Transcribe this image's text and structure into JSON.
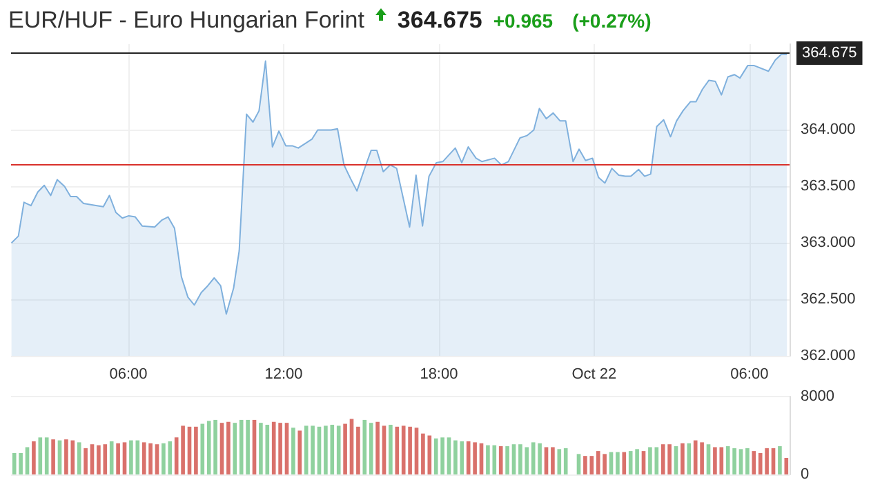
{
  "chart_data": [
    {
      "type": "area",
      "title": "EUR/HUF - Euro Hungarian Forint",
      "annotations": [
        "364.675",
        "+0.965",
        "(+0.27%)"
      ],
      "x": [
        "--10-21T01:29",
        "--10-21T01:45",
        "--10-21T01:58",
        "--10-21T02:14",
        "--10-21T02:30",
        "--10-21T02:45",
        "--10-21T03:00",
        "--10-21T03:15",
        "--10-21T03:32",
        "--10-21T03:46",
        "--10-21T04:00",
        "--10-21T04:16",
        "--10-21T04:47",
        "--10-21T05:02",
        "--10-21T05:16",
        "--10-21T05:31",
        "--10-21T05:46",
        "--10-21T06:01",
        "--10-21T06:16",
        "--10-21T06:32",
        "--10-21T07:01",
        "--10-21T07:17",
        "--10-21T07:32",
        "--10-21T07:47",
        "--10-21T08:03",
        "--10-21T08:18",
        "--10-21T08:33",
        "--10-21T08:49",
        "--10-21T09:04",
        "--10-21T09:19",
        "--10-21T09:34",
        "--10-21T09:47",
        "--10-21T10:04",
        "--10-21T10:17",
        "--10-21T10:34",
        "--10-21T10:49",
        "--10-21T11:03",
        "--10-21T11:18",
        "--10-21T11:34",
        "--10-21T11:49",
        "--10-21T12:05",
        "--10-21T12:20",
        "--10-21T12:34",
        "--10-21T12:50",
        "--10-21T13:06",
        "--10-21T13:19",
        "--10-21T13:50",
        "--10-21T14:05",
        "--10-21T14:20",
        "--10-21T14:35",
        "--10-21T14:50",
        "--10-21T15:07",
        "--10-21T15:23",
        "--10-21T15:36",
        "--10-21T15:51",
        "--10-21T16:07",
        "--10-21T16:22",
        "--10-21T16:52",
        "--10-21T17:07",
        "--10-21T17:22",
        "--10-21T17:37",
        "--10-21T17:54",
        "--10-21T18:09",
        "--10-21T18:38",
        "--10-21T18:53",
        "--10-21T19:08",
        "--10-21T19:26",
        "--10-21T19:40",
        "--10-21T20:09",
        "--10-21T20:25",
        "--10-21T20:41",
        "--10-21T21:08",
        "--10-21T21:24",
        "--10-21T21:40",
        "--10-21T21:53",
        "--10-21T22:09",
        "--10-21T22:25",
        "--10-21T22:41",
        "--10-21T22:54",
        "--10-21T23:11",
        "--10-21T23:25",
        "--10-21T23:40",
        "--10-21T23:56",
        "--10-22T00:10",
        "--10-22T00:25",
        "--10-22T00:41",
        "--10-22T00:57",
        "--10-22T01:12",
        "--10-22T01:25",
        "--10-22T01:43",
        "--10-22T01:57",
        "--10-22T02:11",
        "--10-22T02:25",
        "--10-22T02:41",
        "--10-22T02:57",
        "--10-22T03:11",
        "--10-22T03:26",
        "--10-22T03:43",
        "--10-22T03:56",
        "--10-22T04:11",
        "--10-22T04:26",
        "--10-22T04:41",
        "--10-22T04:55",
        "--10-22T05:10",
        "--10-22T05:25",
        "--10-22T05:38",
        "--10-22T05:56",
        "--10-22T06:11",
        "--10-22T06:44",
        "--10-22T07:00",
        "--10-22T07:14",
        "--10-22T07:27"
      ],
      "series": [
        {
          "color": "#7fb0dd",
          "values": [
            363.0,
            363.06,
            363.36,
            363.33,
            363.45,
            363.51,
            363.42,
            363.56,
            363.5,
            363.41,
            363.41,
            363.35,
            363.33,
            363.32,
            363.42,
            363.27,
            363.22,
            363.24,
            363.23,
            363.15,
            363.14,
            363.2,
            363.23,
            363.13,
            362.7,
            362.52,
            362.45,
            362.56,
            362.62,
            362.69,
            362.62,
            362.37,
            362.6,
            362.93,
            364.14,
            364.07,
            364.17,
            364.61,
            363.85,
            363.99,
            363.86,
            363.86,
            363.84,
            363.88,
            363.92,
            364.0,
            364.0,
            364.01,
            363.69,
            363.57,
            363.46,
            363.65,
            363.82,
            363.82,
            363.63,
            363.69,
            363.66,
            363.14,
            363.6,
            363.15,
            363.59,
            363.71,
            363.72,
            363.84,
            363.71,
            363.85,
            363.75,
            363.72,
            363.75,
            363.69,
            363.72,
            363.93,
            363.95,
            364.0,
            364.19,
            364.1,
            364.15,
            364.08,
            364.08,
            363.72,
            363.83,
            363.73,
            363.75,
            363.58,
            363.53,
            363.66,
            363.6,
            363.59,
            363.59,
            363.65,
            363.59,
            363.61,
            364.03,
            364.09,
            363.94,
            364.08,
            364.17,
            364.25,
            364.25,
            364.36,
            364.44,
            364.43,
            364.31,
            364.47,
            364.49,
            364.46,
            364.57,
            364.57,
            364.52,
            364.62,
            364.67,
            364.67
          ]
        }
      ],
      "xlim": [
        "--10-21T01:28",
        "--10-22T07:33"
      ],
      "xticks": [
        {
          "value": "--10-21T06:00",
          "label": "06:00"
        },
        {
          "value": "--10-21T12:00",
          "label": "12:00"
        },
        {
          "value": "--10-21T18:00",
          "label": "18:00"
        },
        {
          "value": "--10-22T00:00",
          "label": "Oct 22"
        },
        {
          "value": "--10-22T06:00",
          "label": "06:00"
        }
      ],
      "ylim": [
        362,
        364.76
      ],
      "yticks": [
        {
          "value": 362,
          "label": "362.000"
        },
        {
          "value": 362.5,
          "label": "362.500"
        },
        {
          "value": 363,
          "label": "363.000"
        },
        {
          "value": 363.5,
          "label": "363.500"
        },
        {
          "value": 364,
          "label": "364.000"
        }
      ],
      "ref_lines": [
        {
          "axis": "y",
          "value": 364.675,
          "label": "364.675",
          "color": "#222222"
        },
        {
          "axis": "y",
          "value": 363.7,
          "label": null,
          "color": "#d9302a"
        }
      ],
      "grid": true,
      "marker": "none",
      "line_style": "solid"
    },
    {
      "type": "bar",
      "categories": [
        null,
        null,
        null,
        null,
        null,
        null,
        null,
        null,
        null,
        null,
        null,
        null,
        null,
        null,
        null,
        null,
        null,
        null,
        null,
        null,
        null,
        null,
        null,
        null,
        null,
        null,
        null,
        null,
        null,
        null,
        null,
        null,
        null,
        null,
        null,
        null,
        null,
        null,
        null,
        null,
        null,
        null,
        null,
        null,
        null,
        null,
        null,
        null,
        null,
        null,
        null,
        null,
        null,
        null,
        null,
        null,
        null,
        null,
        null,
        null,
        null,
        null,
        null,
        null,
        null,
        null,
        null,
        null,
        null,
        null,
        null,
        null,
        null,
        null,
        null,
        null,
        null,
        null,
        null,
        null,
        null,
        null,
        null,
        null,
        null,
        null,
        null,
        null,
        null,
        null,
        null,
        null,
        null,
        null,
        null,
        null,
        null,
        null,
        null,
        null,
        null,
        null,
        null,
        null,
        null,
        null,
        null,
        null,
        null,
        null,
        null,
        null,
        null,
        null,
        null,
        null,
        null,
        null,
        null,
        null
      ],
      "values": [
        2200,
        2200,
        2800,
        3400,
        3800,
        3800,
        3600,
        3500,
        3600,
        3500,
        3300,
        2700,
        3100,
        3000,
        3100,
        3400,
        3200,
        3300,
        3500,
        3500,
        3300,
        3200,
        3100,
        3200,
        3400,
        3800,
        5000,
        4900,
        4900,
        5200,
        5500,
        5600,
        5300,
        5400,
        5300,
        5600,
        5600,
        5600,
        5300,
        5100,
        5400,
        5300,
        5300,
        4800,
        4500,
        5000,
        5000,
        4900,
        5000,
        5100,
        5000,
        5200,
        5700,
        4900,
        5600,
        5300,
        5400,
        5000,
        5100,
        4900,
        5000,
        4900,
        4800,
        4200,
        4000,
        3700,
        3800,
        3800,
        3500,
        3400,
        3400,
        3300,
        3200,
        3000,
        3000,
        2900,
        2900,
        3100,
        3100,
        2800,
        3300,
        3200,
        2800,
        2800,
        2600,
        2700,
        null,
        2100,
        1900,
        1900,
        2400,
        2100,
        2300,
        2300,
        2300,
        2400,
        2600,
        2400,
        2800,
        2800,
        3100,
        3100,
        2900,
        3200,
        3200,
        3500,
        3300,
        3100,
        2800,
        2800,
        2900,
        2700,
        2600,
        2700,
        2400,
        2200,
        2700,
        2700,
        2900,
        1700
      ],
      "colors": [
        "#8fd19e",
        "#8fd19e",
        "#8fd19e",
        "#d9716b",
        "#8fd19e",
        "#8fd19e",
        "#d9716b",
        "#8fd19e",
        "#d9716b",
        "#d9716b",
        "#8fd19e",
        "#d9716b",
        "#d9716b",
        "#d9716b",
        "#d9716b",
        "#8fd19e",
        "#d9716b",
        "#d9716b",
        "#8fd19e",
        "#8fd19e",
        "#d9716b",
        "#d9716b",
        "#d9716b",
        "#8fd19e",
        "#8fd19e",
        "#d9716b",
        "#d9716b",
        "#d9716b",
        "#d9716b",
        "#8fd19e",
        "#8fd19e",
        "#8fd19e",
        "#d9716b",
        "#d9716b",
        "#8fd19e",
        "#8fd19e",
        "#8fd19e",
        "#d9716b",
        "#8fd19e",
        "#8fd19e",
        "#d9716b",
        "#d9716b",
        "#d9716b",
        "#8fd19e",
        "#d9716b",
        "#8fd19e",
        "#8fd19e",
        "#8fd19e",
        "#8fd19e",
        "#8fd19e",
        "#8fd19e",
        "#d9716b",
        "#d9716b",
        "#d9716b",
        "#8fd19e",
        "#8fd19e",
        "#d9716b",
        "#d9716b",
        "#8fd19e",
        "#d9716b",
        "#d9716b",
        "#d9716b",
        "#d9716b",
        "#d9716b",
        "#d9716b",
        "#8fd19e",
        "#8fd19e",
        "#8fd19e",
        "#8fd19e",
        "#8fd19e",
        "#d9716b",
        "#d9716b",
        "#d9716b",
        "#8fd19e",
        "#8fd19e",
        "#d9716b",
        "#8fd19e",
        "#8fd19e",
        "#8fd19e",
        "#8fd19e",
        "#8fd19e",
        "#8fd19e",
        "#d9716b",
        "#d9716b",
        "#8fd19e",
        "#8fd19e",
        "#8fd19e",
        "#8fd19e",
        "#d9716b",
        "#d9716b",
        "#d9716b",
        "#d9716b",
        "#8fd19e",
        "#8fd19e",
        "#d9716b",
        "#8fd19e",
        "#8fd19e",
        "#d9716b",
        "#8fd19e",
        "#8fd19e",
        "#d9716b",
        "#d9716b",
        "#8fd19e",
        "#d9716b",
        "#8fd19e",
        "#d9716b",
        "#d9716b",
        "#8fd19e",
        "#d9716b",
        "#d9716b",
        "#8fd19e",
        "#8fd19e",
        "#8fd19e",
        "#8fd19e",
        "#d9716b",
        "#d9716b",
        "#d9716b",
        "#d9716b",
        "#8fd19e",
        "#d9716b"
      ],
      "ylim": [
        0,
        8000
      ],
      "yticks": [
        0,
        8000
      ],
      "tick_labels": "y",
      "grid": "y"
    }
  ]
}
